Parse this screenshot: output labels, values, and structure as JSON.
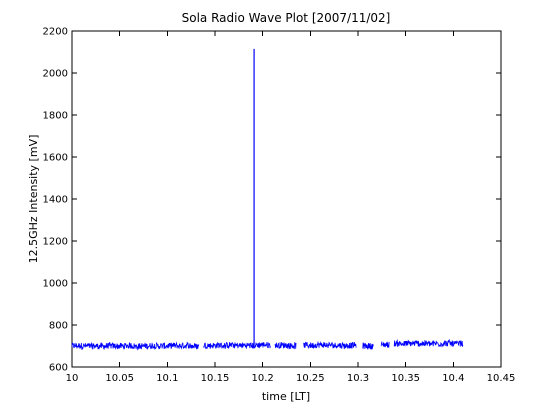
{
  "chart_data": {
    "type": "line",
    "title": "Sola Radio Wave Plot [2007/11/02]",
    "xlabel": "time [LT]",
    "ylabel": "12.5GHz Intensity [mV]",
    "xlim": [
      10,
      10.45
    ],
    "ylim": [
      600,
      2200
    ],
    "xticks": [
      10,
      10.05,
      10.1,
      10.15,
      10.2,
      10.25,
      10.3,
      10.35,
      10.4,
      10.45
    ],
    "xtick_labels": [
      "10",
      "10.05",
      "10.1",
      "10.15",
      "10.2",
      "10.25",
      "10.3",
      "10.35",
      "10.4",
      "10.45"
    ],
    "yticks": [
      600,
      800,
      1000,
      1200,
      1400,
      1600,
      1800,
      2000,
      2200
    ],
    "ytick_labels": [
      "600",
      "800",
      "1000",
      "1200",
      "1400",
      "1600",
      "1800",
      "2000",
      "2200"
    ],
    "grid": false,
    "line_color": "#0000ff",
    "segments": [
      {
        "x_start": 10.0,
        "x_end": 10.133,
        "baseline": 700
      },
      {
        "x_start": 10.138,
        "x_end": 10.193,
        "baseline": 703
      },
      {
        "x_start": 10.193,
        "x_end": 10.208,
        "baseline": 705
      },
      {
        "x_start": 10.213,
        "x_end": 10.235,
        "baseline": 703
      },
      {
        "x_start": 10.243,
        "x_end": 10.298,
        "baseline": 703
      },
      {
        "x_start": 10.305,
        "x_end": 10.316,
        "baseline": 700
      },
      {
        "x_start": 10.324,
        "x_end": 10.333,
        "baseline": 705
      },
      {
        "x_start": 10.338,
        "x_end": 10.41,
        "baseline": 712
      }
    ],
    "spike": {
      "x": 10.191,
      "peak": 2115,
      "base": 705
    },
    "noise_amplitude": 15
  }
}
